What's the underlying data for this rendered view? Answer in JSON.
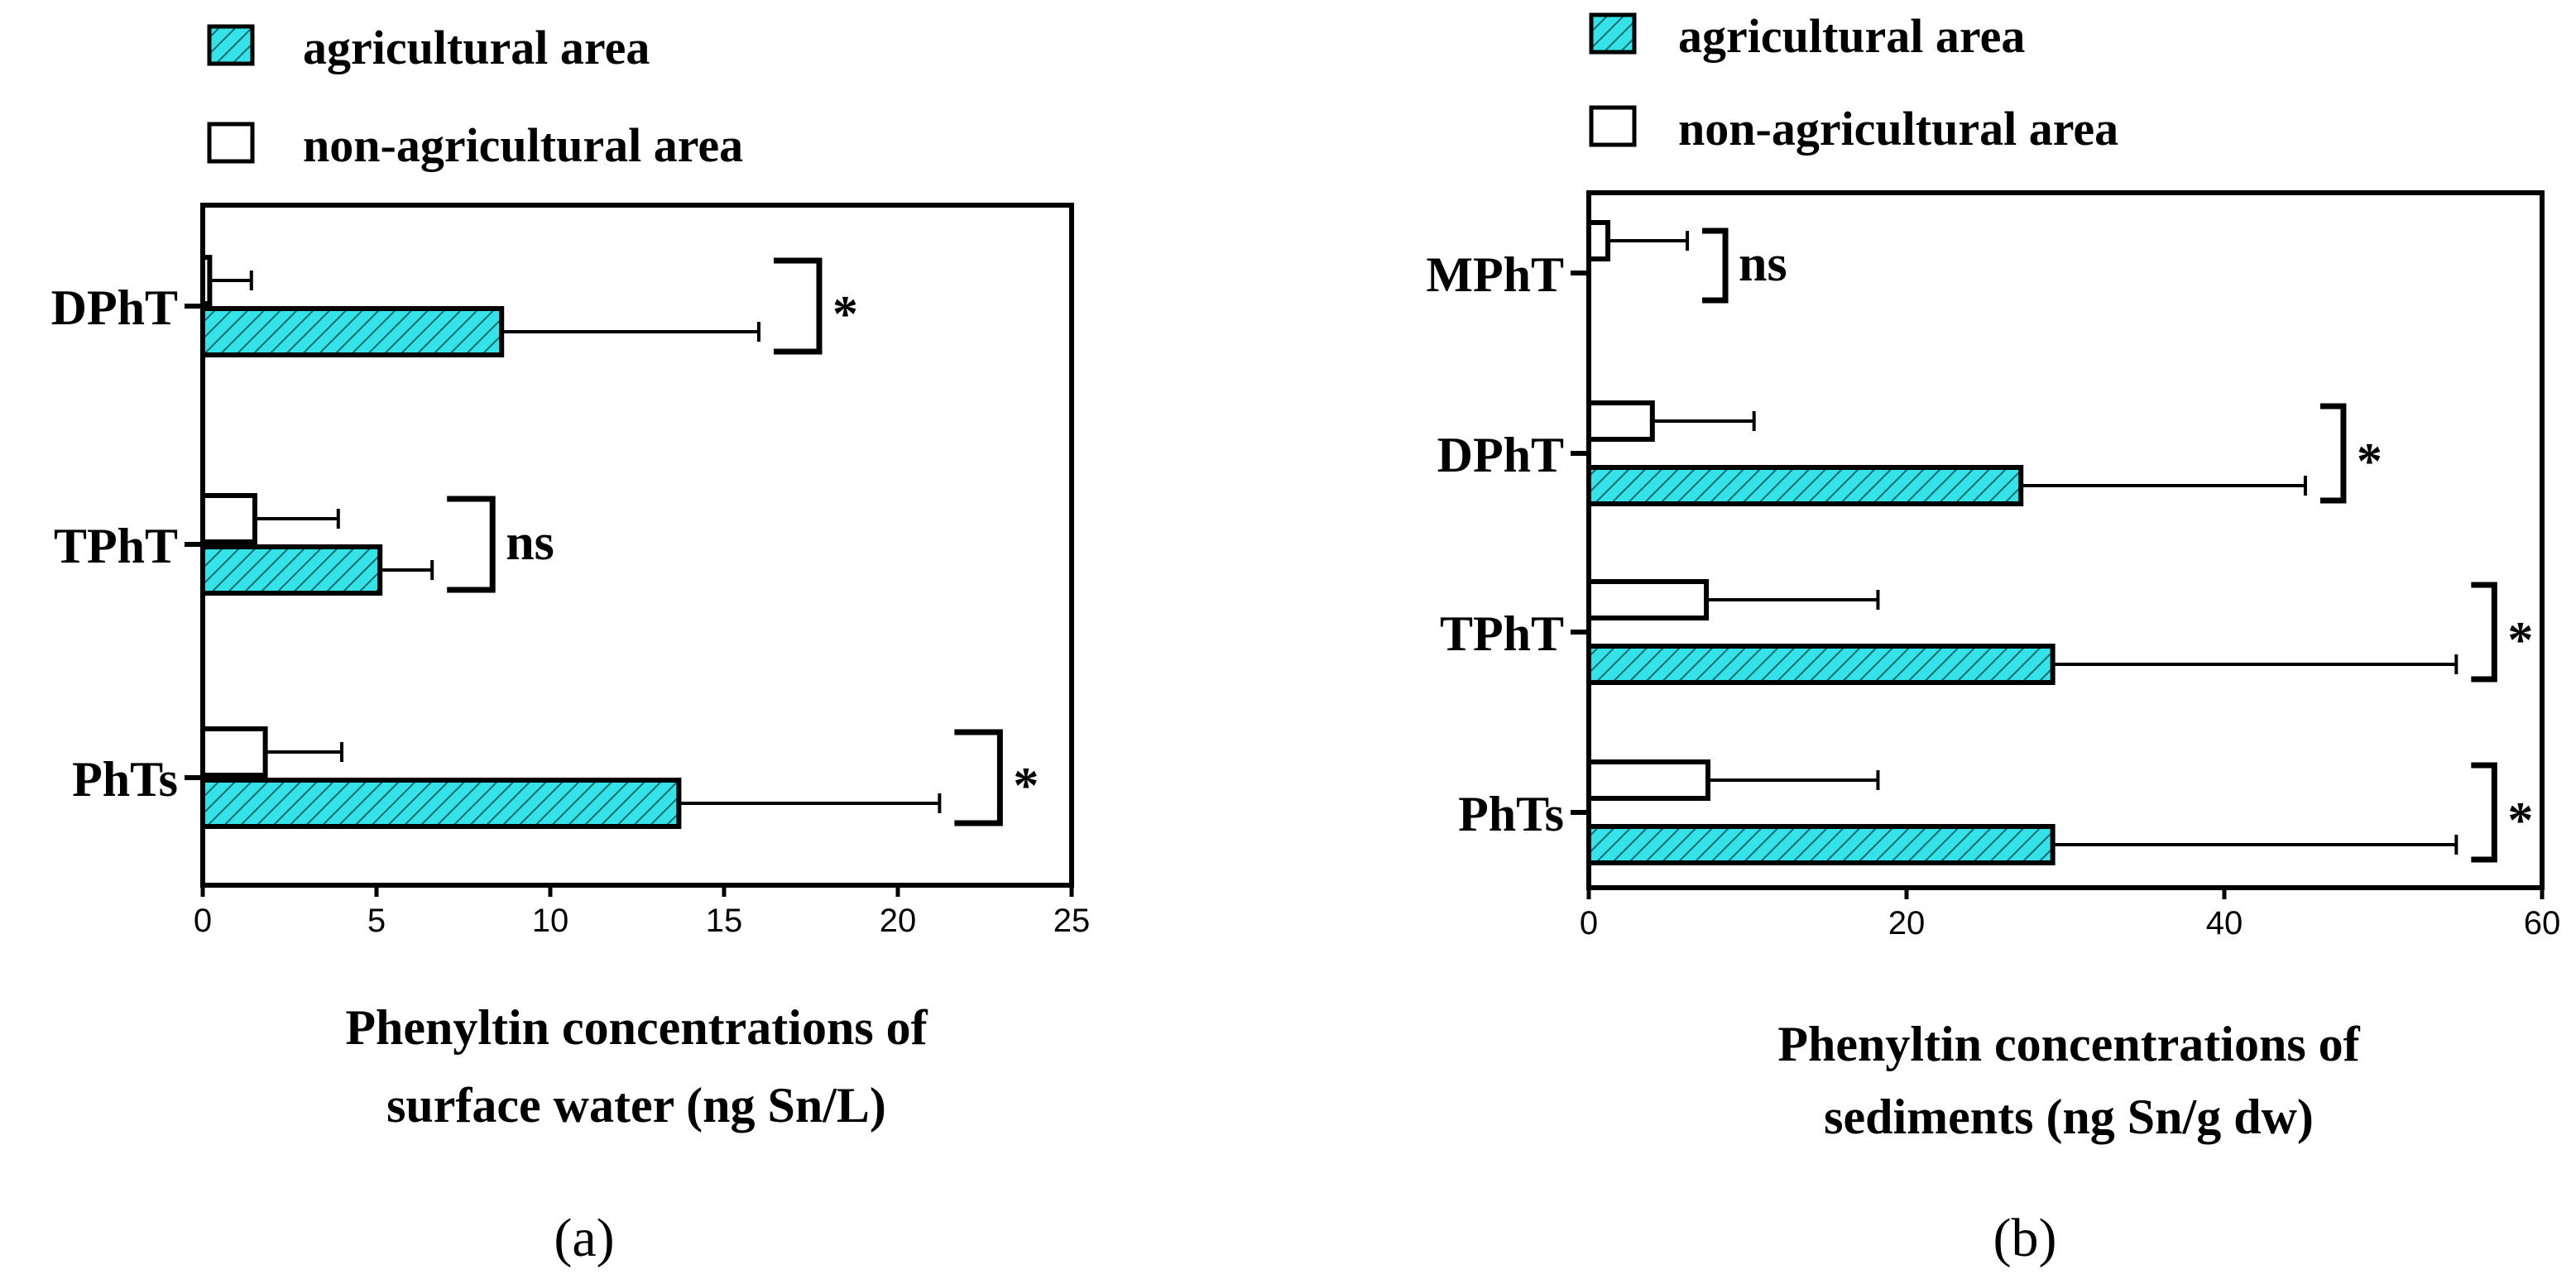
{
  "colors": {
    "agricultural": "#33e3e8",
    "hatch": "#1a6b6f",
    "non_agricultural": "#ffffff",
    "axis": "#000000"
  },
  "chart_data": [
    {
      "type": "bar",
      "orientation": "horizontal",
      "panel_label": "(a)",
      "legend": [
        "agricultural area",
        "non-agricultural area"
      ],
      "categories": [
        "DPhT",
        "TPhT",
        "PhTs"
      ],
      "series": [
        {
          "name": "non-agricultural area",
          "values": [
            0.2,
            1.5,
            1.8
          ],
          "errors": [
            1.2,
            2.4,
            2.2
          ]
        },
        {
          "name": "agricultural area",
          "values": [
            8.6,
            5.1,
            13.7
          ],
          "errors": [
            7.4,
            1.5,
            7.5
          ]
        }
      ],
      "significance": [
        "*",
        "ns",
        "*"
      ],
      "xlabel": [
        "Phenyltin concentrations of",
        "surface water (ng Sn/L)"
      ],
      "xlim": [
        0,
        25
      ],
      "xticks": [
        "0",
        "5",
        "10",
        "15",
        "20",
        "25"
      ]
    },
    {
      "type": "bar",
      "orientation": "horizontal",
      "panel_label": "(b)",
      "legend": [
        "agricultural area",
        "non-agricultural area"
      ],
      "categories": [
        "MPhT",
        "DPhT",
        "TPhT",
        "PhTs"
      ],
      "series": [
        {
          "name": "non-agricultural area",
          "values": [
            1.2,
            4.0,
            7.4,
            7.5
          ],
          "errors": [
            5.0,
            6.4,
            10.8,
            10.7
          ]
        },
        {
          "name": "agricultural area",
          "values": [
            0,
            27.2,
            29.2,
            29.2
          ],
          "errors": [
            0,
            17.9,
            25.4,
            25.4
          ]
        }
      ],
      "significance": [
        "ns",
        "*",
        "*",
        "*"
      ],
      "xlabel": [
        "Phenyltin concentrations of",
        "sediments (ng Sn/g dw)"
      ],
      "xlim": [
        0,
        60
      ],
      "xticks": [
        "0",
        "20",
        "40",
        "60"
      ]
    }
  ]
}
